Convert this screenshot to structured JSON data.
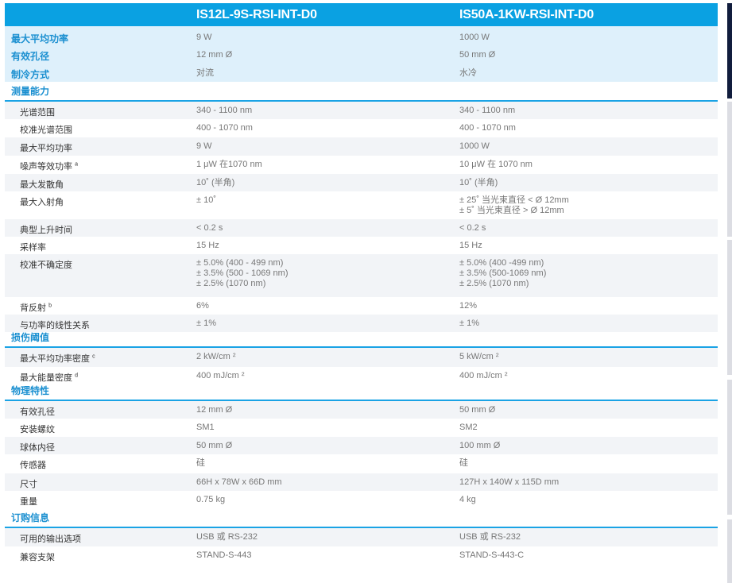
{
  "header": {
    "columns": [
      "IS12L-9S-RSI-INT-D0",
      "IS50A-1KW-RSI-INT-D0"
    ]
  },
  "top_rows": [
    {
      "label": "最大平均功率",
      "v1": "9 W",
      "v2": "1000 W"
    },
    {
      "label": "有效孔径",
      "v1": "12 mm Ø",
      "v2": "50 mm Ø"
    },
    {
      "label": "制冷方式",
      "v1": "对流",
      "v2": "水冷"
    }
  ],
  "sections": [
    {
      "title": "测量能力",
      "rows": [
        {
          "label": "光谱范围",
          "v1": [
            "340 - 1100 nm"
          ],
          "v2": [
            "340 - 1100 nm"
          ]
        },
        {
          "label": "校准光谱范围",
          "v1": [
            "400 - 1070 nm"
          ],
          "v2": [
            "400 - 1070 nm"
          ]
        },
        {
          "label": "最大平均功率",
          "v1": [
            "9 W"
          ],
          "v2": [
            "1000 W"
          ]
        },
        {
          "label": "噪声等效功率",
          "sup": "a",
          "v1": [
            "1 μW 在1070 nm"
          ],
          "v2": [
            "10 μW 在 1070 nm"
          ]
        },
        {
          "label": "最大发散角",
          "v1": [
            "10˚ (半角)"
          ],
          "v2": [
            "10˚ (半角)"
          ]
        },
        {
          "label": "最大入射角",
          "v1": [
            "± 10˚"
          ],
          "v2": [
            "± 25˚  当光束直径 < Ø 12mm",
            "± 5˚   当光束直径 > Ø 12mm"
          ]
        },
        {
          "label": "典型上升时间",
          "v1": [
            "< 0.2 s"
          ],
          "v2": [
            "< 0.2 s"
          ]
        },
        {
          "label": "采样率",
          "v1": [
            "15 Hz"
          ],
          "v2": [
            "15 Hz"
          ]
        },
        {
          "label": "校准不确定度",
          "v1": [
            "± 5.0% (400 - 499 nm)",
            "± 3.5% (500 - 1069 nm)",
            "± 2.5% (1070 nm)"
          ],
          "v2": [
            "± 5.0%   (400 -499 nm)",
            "± 3.5%   (500-1069 nm)",
            "± 2.5%   (1070 nm)"
          ]
        },
        {
          "label": "背反射",
          "sup": "b",
          "v1": [
            "6%"
          ],
          "v2": [
            "12%"
          ]
        },
        {
          "label": "与功率的线性关系",
          "v1": [
            "± 1%"
          ],
          "v2": [
            "± 1%"
          ]
        }
      ]
    },
    {
      "title": "损伤阈值",
      "rows": [
        {
          "label": "最大平均功率密度",
          "sup": "c",
          "v1": [
            "2 kW/cm ²"
          ],
          "v2": [
            "5 kW/cm ²"
          ]
        },
        {
          "label": "最大能量密度",
          "sup": "d",
          "v1": [
            "400 mJ/cm ²"
          ],
          "v2": [
            "400 mJ/cm ²"
          ]
        }
      ]
    },
    {
      "title": "物理特性",
      "rows": [
        {
          "label": "有效孔径",
          "v1": [
            "12 mm Ø"
          ],
          "v2": [
            "50 mm Ø"
          ]
        },
        {
          "label": "安装螺纹",
          "v1": [
            "SM1"
          ],
          "v2": [
            "SM2"
          ]
        },
        {
          "label": "球体内径",
          "v1": [
            "50 mm Ø"
          ],
          "v2": [
            "100 mm Ø"
          ]
        },
        {
          "label": "传感器",
          "v1": [
            "硅"
          ],
          "v2": [
            "硅"
          ]
        },
        {
          "label": "尺寸",
          "v1": [
            "66H x 78W x 66D mm"
          ],
          "v2": [
            "127H x 140W x 115D mm"
          ]
        },
        {
          "label": "重量",
          "v1": [
            "0.75 kg"
          ],
          "v2": [
            "4 kg"
          ]
        }
      ]
    },
    {
      "title": "订购信息",
      "rows": [
        {
          "label": "可用的输出选项",
          "v1": [
            "USB 或 RS-232"
          ],
          "v2": [
            "USB 或 RS-232"
          ]
        },
        {
          "label": "兼容支架",
          "v1": [
            "STAND-S-443"
          ],
          "v2": [
            "STAND-S-443-C"
          ]
        }
      ]
    }
  ],
  "colors": {
    "header": "#0aa1e2",
    "top_band": "#def0fb",
    "section_line": "#1aa3e5",
    "section_text": "#1a8fd0"
  }
}
